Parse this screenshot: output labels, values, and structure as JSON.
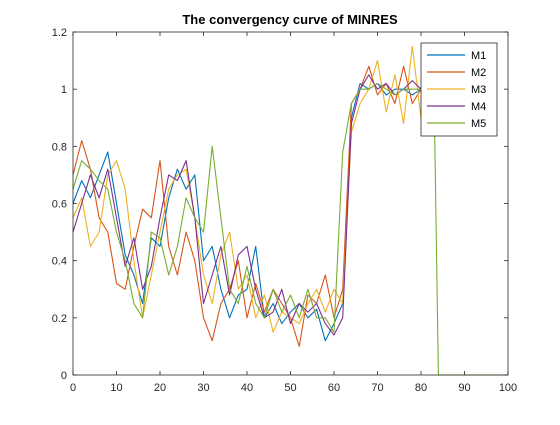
{
  "chart_data": {
    "type": "line",
    "title": "The convergency curve of MINRES",
    "xlabel": "",
    "ylabel": "",
    "xlim": [
      0,
      100
    ],
    "ylim": [
      0,
      1.2
    ],
    "x_ticks": [
      0,
      10,
      20,
      30,
      40,
      50,
      60,
      70,
      80,
      90,
      100
    ],
    "x_tick_labels": [
      "0",
      "10",
      "20",
      "30",
      "40",
      "50",
      "60",
      "70",
      "80",
      "90",
      "100"
    ],
    "y_ticks": [
      0,
      0.2,
      0.4,
      0.6,
      0.8,
      1,
      1.2
    ],
    "y_tick_labels": [
      "0",
      "0.2",
      "0.4",
      "0.6",
      "0.8",
      "1",
      "1.2"
    ],
    "grid": false,
    "legend_position": "top-right",
    "series": [
      {
        "name": "M1",
        "color": "#0072BD",
        "x": [
          0,
          2,
          4,
          6,
          8,
          10,
          12,
          14,
          16,
          18,
          20,
          22,
          24,
          26,
          28,
          30,
          32,
          34,
          36,
          38,
          40,
          42,
          44,
          46,
          48,
          50,
          52,
          54,
          56,
          58,
          60,
          62,
          64,
          66,
          68,
          70,
          72,
          74,
          76,
          78,
          80,
          82
        ],
        "y": [
          0.6,
          0.68,
          0.62,
          0.7,
          0.78,
          0.6,
          0.42,
          0.35,
          0.25,
          0.48,
          0.45,
          0.62,
          0.72,
          0.65,
          0.7,
          0.4,
          0.45,
          0.3,
          0.2,
          0.28,
          0.3,
          0.45,
          0.2,
          0.25,
          0.18,
          0.22,
          0.25,
          0.2,
          0.23,
          0.12,
          0.18,
          0.25,
          0.9,
          1.02,
          1.0,
          1.02,
          0.98,
          1.0,
          1.0,
          0.98,
          1.0,
          1.0
        ]
      },
      {
        "name": "M2",
        "color": "#D95319",
        "x": [
          0,
          2,
          4,
          6,
          8,
          10,
          12,
          14,
          16,
          18,
          20,
          22,
          24,
          26,
          28,
          30,
          32,
          34,
          36,
          38,
          40,
          42,
          44,
          46,
          48,
          50,
          52,
          54,
          56,
          58,
          60,
          62,
          64,
          66,
          68,
          70,
          72,
          74,
          76,
          78,
          80,
          82
        ],
        "y": [
          0.7,
          0.82,
          0.72,
          0.55,
          0.5,
          0.32,
          0.3,
          0.45,
          0.58,
          0.55,
          0.75,
          0.45,
          0.35,
          0.5,
          0.4,
          0.2,
          0.12,
          0.25,
          0.3,
          0.4,
          0.2,
          0.32,
          0.22,
          0.3,
          0.25,
          0.2,
          0.1,
          0.28,
          0.25,
          0.35,
          0.2,
          0.3,
          0.95,
          1.0,
          1.08,
          0.98,
          1.02,
          0.95,
          1.08,
          0.95,
          1.0,
          1.0
        ]
      },
      {
        "name": "M3",
        "color": "#EDB120",
        "x": [
          0,
          2,
          4,
          6,
          8,
          10,
          12,
          14,
          16,
          18,
          20,
          22,
          24,
          26,
          28,
          30,
          32,
          34,
          36,
          38,
          40,
          42,
          44,
          46,
          48,
          50,
          52,
          54,
          56,
          58,
          60,
          62,
          64,
          66,
          68,
          70,
          72,
          74,
          76,
          78,
          80,
          82
        ],
        "y": [
          0.55,
          0.62,
          0.45,
          0.5,
          0.7,
          0.75,
          0.65,
          0.4,
          0.2,
          0.35,
          0.5,
          0.65,
          0.7,
          0.72,
          0.55,
          0.35,
          0.25,
          0.42,
          0.5,
          0.3,
          0.35,
          0.2,
          0.28,
          0.15,
          0.22,
          0.2,
          0.18,
          0.25,
          0.3,
          0.22,
          0.3,
          0.25,
          0.85,
          0.95,
          1.0,
          1.1,
          0.92,
          1.05,
          0.88,
          1.15,
          0.9,
          1.0
        ]
      },
      {
        "name": "M4",
        "color": "#7E2F8E",
        "x": [
          0,
          2,
          4,
          6,
          8,
          10,
          12,
          14,
          16,
          18,
          20,
          22,
          24,
          26,
          28,
          30,
          32,
          34,
          36,
          38,
          40,
          42,
          44,
          46,
          48,
          50,
          52,
          54,
          56,
          58,
          60,
          62,
          64,
          66,
          68,
          70,
          72,
          74,
          76,
          78,
          80,
          82
        ],
        "y": [
          0.5,
          0.6,
          0.7,
          0.62,
          0.72,
          0.55,
          0.38,
          0.48,
          0.3,
          0.38,
          0.55,
          0.7,
          0.68,
          0.75,
          0.55,
          0.25,
          0.35,
          0.45,
          0.28,
          0.42,
          0.45,
          0.3,
          0.2,
          0.22,
          0.3,
          0.18,
          0.25,
          0.22,
          0.25,
          0.18,
          0.14,
          0.2,
          0.88,
          1.0,
          1.05,
          1.0,
          1.02,
          0.98,
          1.0,
          1.03,
          1.0,
          1.0
        ]
      },
      {
        "name": "M5",
        "color": "#77AC30",
        "x": [
          0,
          2,
          4,
          6,
          8,
          10,
          12,
          14,
          16,
          18,
          20,
          22,
          24,
          26,
          28,
          30,
          32,
          34,
          36,
          38,
          40,
          42,
          44,
          46,
          48,
          50,
          52,
          54,
          56,
          58,
          60,
          62,
          64,
          66,
          68,
          70,
          72,
          74,
          76,
          78,
          80,
          82,
          83,
          84,
          86,
          88,
          90,
          92,
          94,
          96,
          98,
          100
        ],
        "y": [
          0.65,
          0.75,
          0.72,
          0.68,
          0.65,
          0.5,
          0.4,
          0.25,
          0.2,
          0.5,
          0.48,
          0.35,
          0.45,
          0.62,
          0.55,
          0.5,
          0.8,
          0.55,
          0.3,
          0.25,
          0.38,
          0.25,
          0.2,
          0.3,
          0.22,
          0.28,
          0.2,
          0.3,
          0.2,
          0.2,
          0.15,
          0.78,
          0.95,
          1.0,
          1.0,
          1.02,
          1.0,
          0.98,
          1.0,
          1.0,
          1.0,
          1.0,
          1.0,
          0,
          0,
          0,
          0,
          0,
          0,
          0,
          0,
          0
        ]
      }
    ]
  }
}
